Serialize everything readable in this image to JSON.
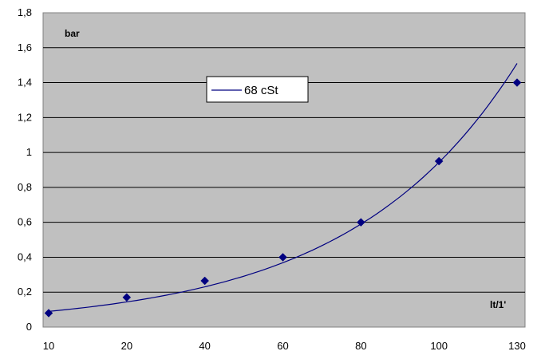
{
  "chart_data": {
    "type": "scatter",
    "x_categories": [
      "10",
      "20",
      "40",
      "60",
      "80",
      "100",
      "130"
    ],
    "series": [
      {
        "name": "68 cSt",
        "color": "#000080",
        "marker": "diamond",
        "points": [
          {
            "x": "10",
            "y": 0.08
          },
          {
            "x": "20",
            "y": 0.17
          },
          {
            "x": "40",
            "y": 0.265
          },
          {
            "x": "60",
            "y": 0.4
          },
          {
            "x": "80",
            "y": 0.6
          },
          {
            "x": "100",
            "y": 0.95
          },
          {
            "x": "130",
            "y": 1.4
          }
        ]
      }
    ],
    "trendline": {
      "type": "exponential",
      "color": "#000080",
      "y_start": 0.09,
      "y_end": 1.51
    },
    "ylabel": "bar",
    "xlabel": "lt/1'",
    "ylim": [
      0,
      1.8
    ],
    "y_ticks": [
      "0",
      "0,2",
      "0,4",
      "0,6",
      "0,8",
      "1",
      "1,2",
      "1,4",
      "1,6",
      "1,8"
    ],
    "grid": "horizontal",
    "plot_background": "#c0c0c0",
    "legend_position": "inside-top-center"
  }
}
